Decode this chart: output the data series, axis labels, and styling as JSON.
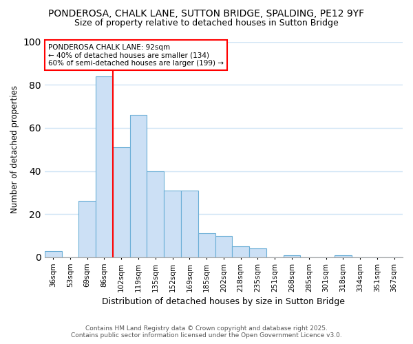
{
  "title": "PONDEROSA, CHALK LANE, SUTTON BRIDGE, SPALDING, PE12 9YF",
  "subtitle": "Size of property relative to detached houses in Sutton Bridge",
  "xlabel": "Distribution of detached houses by size in Sutton Bridge",
  "ylabel": "Number of detached properties",
  "bar_color": "#cce0f5",
  "bar_edge_color": "#6aaed6",
  "categories": [
    "36sqm",
    "53sqm",
    "69sqm",
    "86sqm",
    "102sqm",
    "119sqm",
    "135sqm",
    "152sqm",
    "169sqm",
    "185sqm",
    "202sqm",
    "218sqm",
    "235sqm",
    "251sqm",
    "268sqm",
    "285sqm",
    "301sqm",
    "318sqm",
    "334sqm",
    "351sqm",
    "367sqm"
  ],
  "values": [
    3,
    0,
    26,
    84,
    51,
    66,
    40,
    31,
    31,
    11,
    10,
    5,
    4,
    0,
    1,
    0,
    0,
    1,
    0,
    0,
    0
  ],
  "red_line_x": 3.5,
  "ann_line1": "PONDEROSA CHALK LANE: 92sqm",
  "ann_line2": "← 40% of detached houses are smaller (134)",
  "ann_line3": "60% of semi-detached houses are larger (199) →",
  "ylim": [
    0,
    100
  ],
  "yticks": [
    0,
    20,
    40,
    60,
    80,
    100
  ],
  "footer_line1": "Contains HM Land Registry data © Crown copyright and database right 2025.",
  "footer_line2": "Contains public sector information licensed under the Open Government Licence v3.0.",
  "background_color": "#ffffff",
  "plot_bg_color": "#ffffff",
  "grid_color": "#d0e4f5",
  "title_fontsize": 10,
  "subtitle_fontsize": 9
}
